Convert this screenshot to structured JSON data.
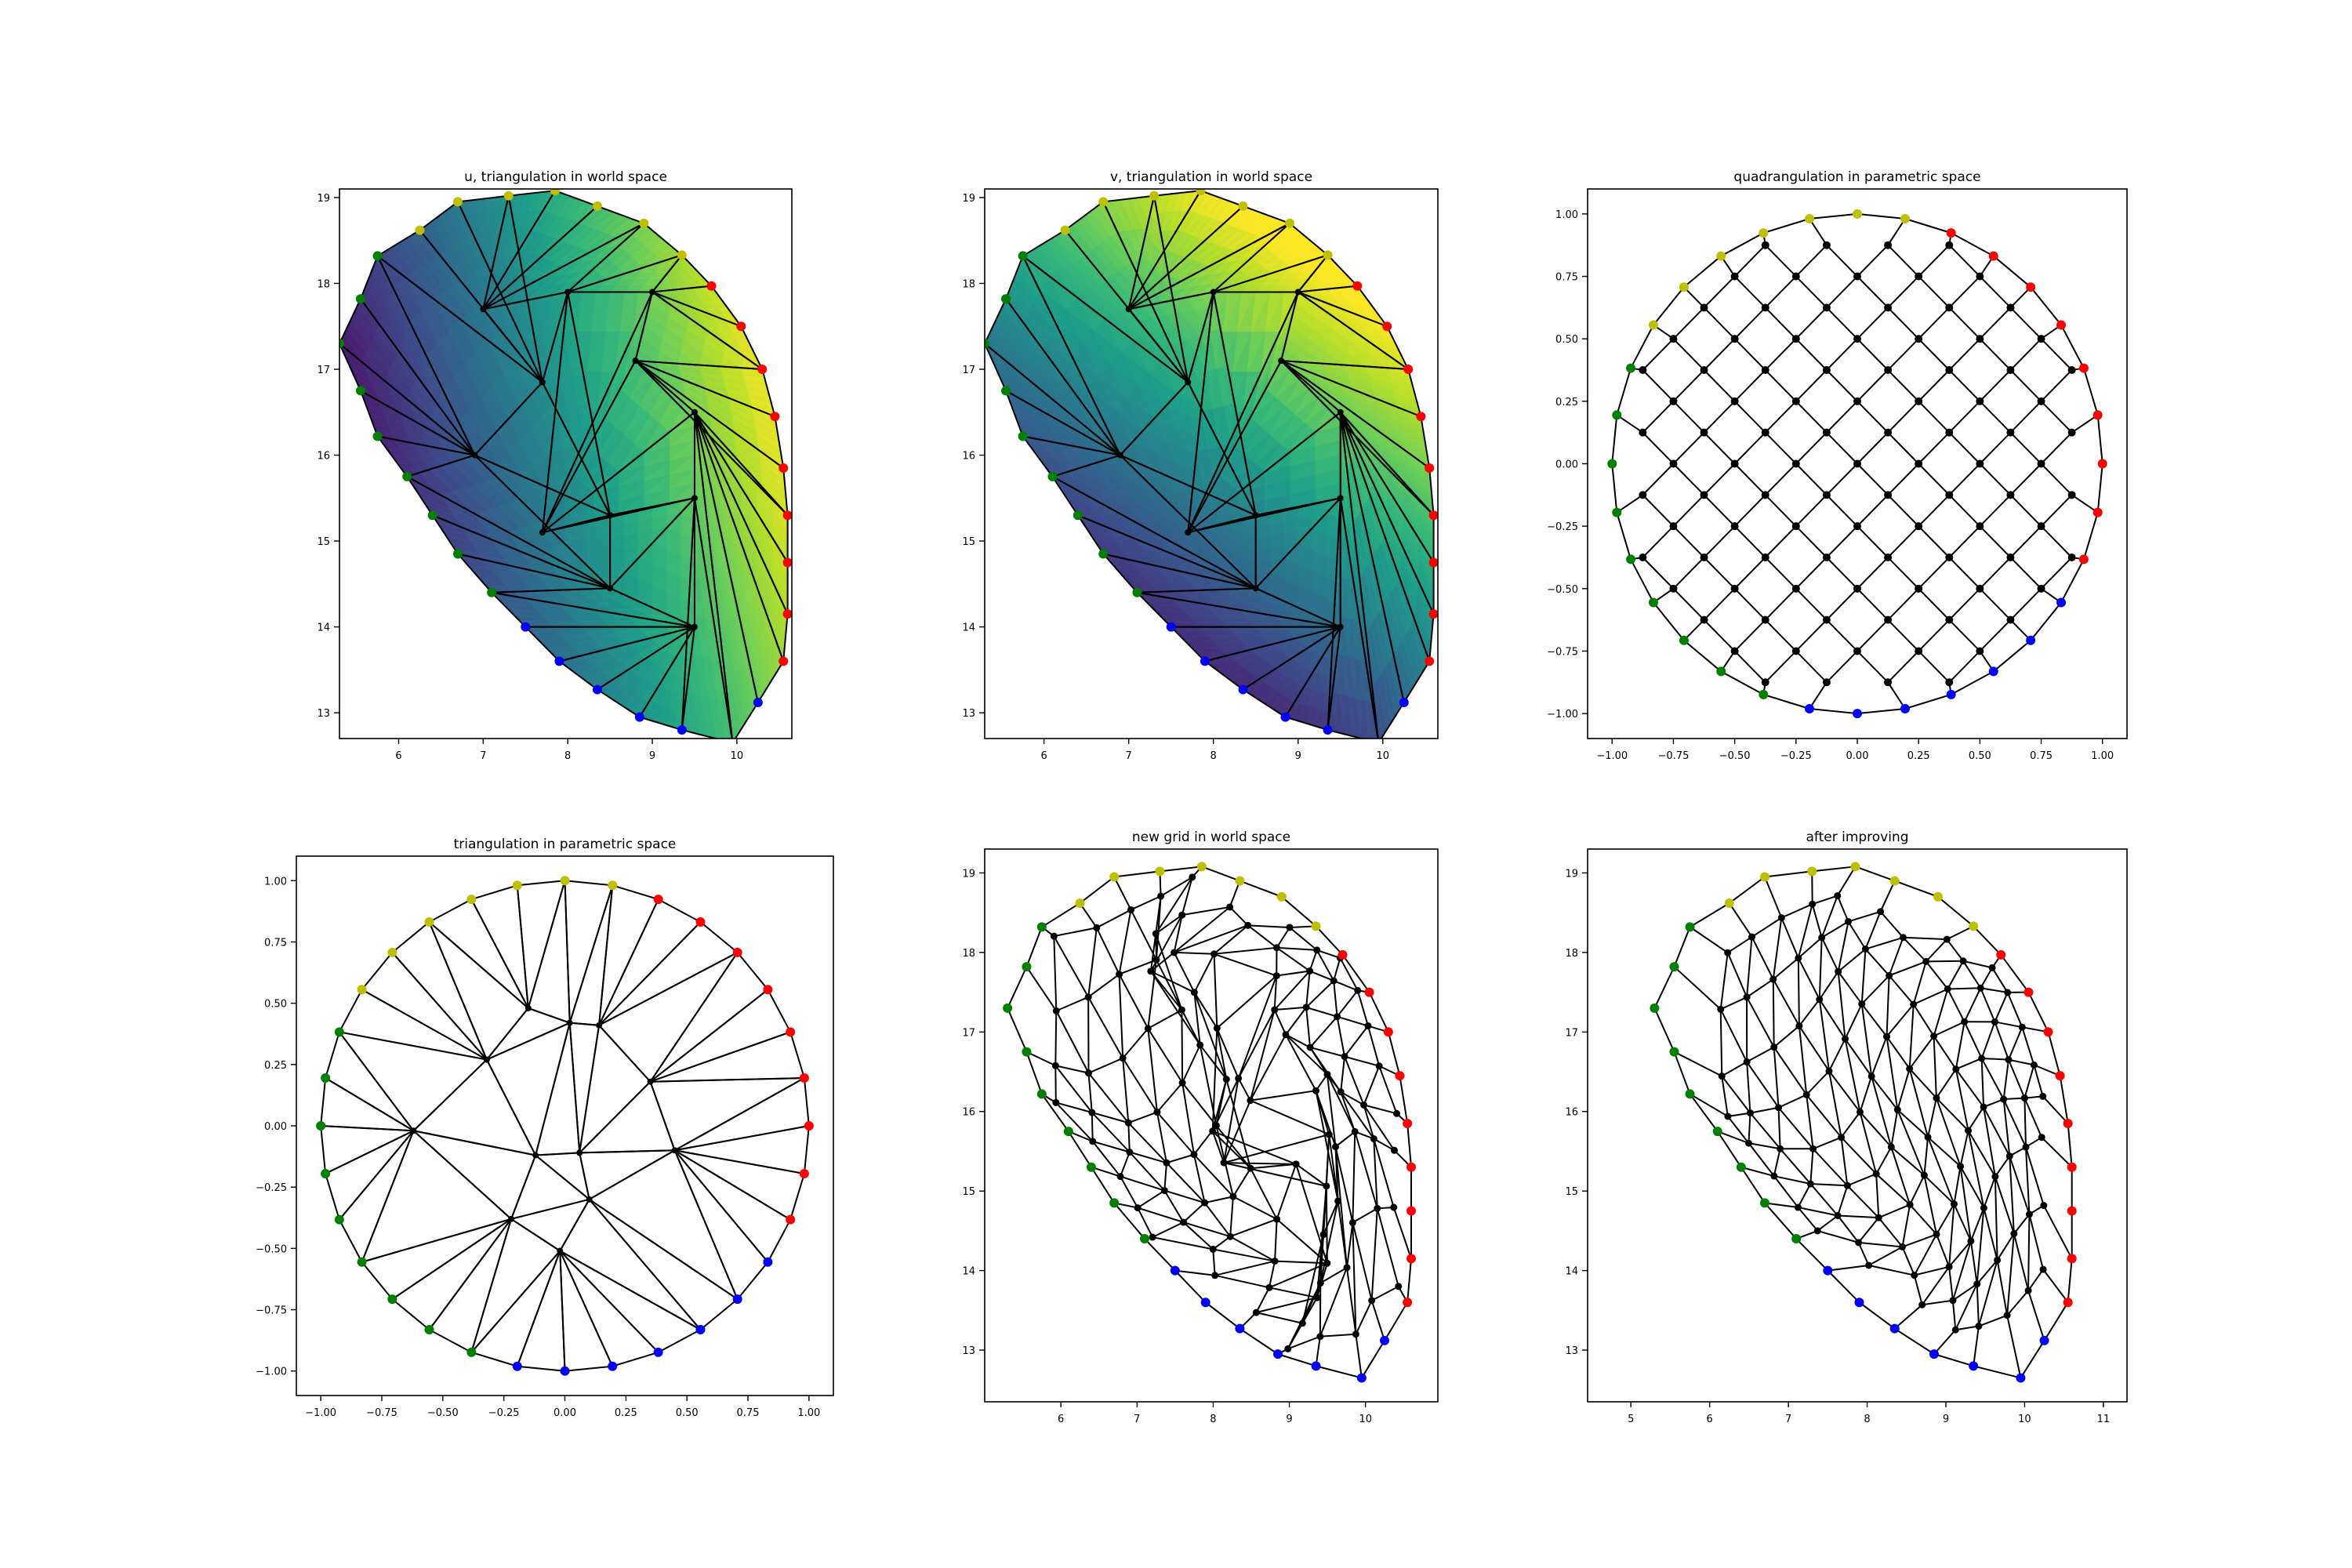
{
  "chart_data": [
    {
      "id": "p1",
      "type": "mesh",
      "title": "u, triangulation in world space",
      "fill": "viridis-u",
      "xlim": [
        5.3,
        10.65
      ],
      "ylim": [
        12.7,
        19.1
      ],
      "xticks": [
        6,
        7,
        8,
        9,
        10
      ],
      "yticks": [
        13,
        14,
        15,
        16,
        17,
        18,
        19
      ],
      "xtick_labels": [
        "6",
        "7",
        "8",
        "9",
        "10"
      ],
      "ytick_labels": [
        "13",
        "14",
        "15",
        "16",
        "17",
        "18",
        "19"
      ],
      "mesh": "world_tri"
    },
    {
      "id": "p2",
      "type": "mesh",
      "title": "v, triangulation in world space",
      "fill": "viridis-v",
      "xlim": [
        5.3,
        10.65
      ],
      "ylim": [
        12.7,
        19.1
      ],
      "xticks": [
        6,
        7,
        8,
        9,
        10
      ],
      "yticks": [
        13,
        14,
        15,
        16,
        17,
        18,
        19
      ],
      "xtick_labels": [
        "6",
        "7",
        "8",
        "9",
        "10"
      ],
      "ytick_labels": [
        "13",
        "14",
        "15",
        "16",
        "17",
        "18",
        "19"
      ],
      "mesh": "world_tri"
    },
    {
      "id": "p3",
      "type": "mesh",
      "title": "quadrangulation in parametric space",
      "xlim": [
        -1.1,
        1.1
      ],
      "ylim": [
        -1.1,
        1.1
      ],
      "xticks": [
        -1.0,
        -0.75,
        -0.5,
        -0.25,
        0.0,
        0.25,
        0.5,
        0.75,
        1.0
      ],
      "yticks": [
        -1.0,
        -0.75,
        -0.5,
        -0.25,
        0.0,
        0.25,
        0.5,
        0.75,
        1.0
      ],
      "xtick_labels": [
        "−1.00",
        "−0.75",
        "−0.50",
        "−0.25",
        "0.00",
        "0.25",
        "0.50",
        "0.75",
        "1.00"
      ],
      "ytick_labels": [
        "−1.00",
        "−0.75",
        "−0.50",
        "−0.25",
        "0.00",
        "0.25",
        "0.50",
        "0.75",
        "1.00"
      ],
      "mesh": "param_quad"
    },
    {
      "id": "p4",
      "type": "mesh",
      "title": "triangulation in parametric space",
      "xlim": [
        -1.1,
        1.1
      ],
      "ylim": [
        -1.1,
        1.1
      ],
      "xticks": [
        -1.0,
        -0.75,
        -0.5,
        -0.25,
        0.0,
        0.25,
        0.5,
        0.75,
        1.0
      ],
      "yticks": [
        -1.0,
        -0.75,
        -0.5,
        -0.25,
        0.0,
        0.25,
        0.5,
        0.75,
        1.0
      ],
      "xtick_labels": [
        "−1.00",
        "−0.75",
        "−0.50",
        "−0.25",
        "0.00",
        "0.25",
        "0.50",
        "0.75",
        "1.00"
      ],
      "ytick_labels": [
        "−1.00",
        "−0.75",
        "−0.50",
        "−0.25",
        "0.00",
        "0.25",
        "0.50",
        "0.75",
        "1.00"
      ],
      "mesh": "param_tri"
    },
    {
      "id": "p5",
      "type": "mesh",
      "title": "new grid in world space",
      "xlim": [
        5.0,
        10.95
      ],
      "ylim": [
        12.35,
        19.3
      ],
      "xticks": [
        6,
        7,
        8,
        9,
        10
      ],
      "yticks": [
        13,
        14,
        15,
        16,
        17,
        18,
        19
      ],
      "xtick_labels": [
        "6",
        "7",
        "8",
        "9",
        "10"
      ],
      "ytick_labels": [
        "13",
        "14",
        "15",
        "16",
        "17",
        "18",
        "19"
      ],
      "mesh": "new_grid"
    },
    {
      "id": "p6",
      "type": "mesh",
      "title": "after improving",
      "xlim": [
        4.45,
        11.3
      ],
      "ylim": [
        12.35,
        19.3
      ],
      "xticks": [
        5,
        6,
        7,
        8,
        9,
        10,
        11
      ],
      "yticks": [
        13,
        14,
        15,
        16,
        17,
        18,
        19
      ],
      "xtick_labels": [
        "5",
        "6",
        "7",
        "8",
        "9",
        "10",
        "11"
      ],
      "ytick_labels": [
        "13",
        "14",
        "15",
        "16",
        "17",
        "18",
        "19"
      ],
      "mesh": "new_grid_improved"
    }
  ],
  "boundary_world": [
    [
      10.6,
      14.75
    ],
    [
      10.6,
      15.3
    ],
    [
      10.55,
      15.85
    ],
    [
      10.45,
      16.45
    ],
    [
      10.3,
      17.0
    ],
    [
      10.05,
      17.5
    ],
    [
      9.7,
      17.97
    ],
    [
      9.35,
      18.33
    ],
    [
      8.9,
      18.7
    ],
    [
      8.35,
      18.9
    ],
    [
      7.85,
      19.08
    ],
    [
      7.3,
      19.02
    ],
    [
      6.7,
      18.95
    ],
    [
      6.25,
      18.62
    ],
    [
      5.75,
      18.32
    ],
    [
      5.55,
      17.82
    ],
    [
      5.3,
      17.3
    ],
    [
      5.55,
      16.75
    ],
    [
      5.75,
      16.22
    ],
    [
      6.1,
      15.75
    ],
    [
      6.4,
      15.3
    ],
    [
      6.7,
      14.85
    ],
    [
      7.1,
      14.4
    ],
    [
      7.5,
      14.0
    ],
    [
      7.9,
      13.6
    ],
    [
      8.35,
      13.27
    ],
    [
      8.85,
      12.95
    ],
    [
      9.35,
      12.8
    ],
    [
      9.95,
      12.65
    ],
    [
      10.25,
      13.12
    ],
    [
      10.55,
      13.6
    ],
    [
      10.6,
      14.15
    ]
  ],
  "boundary_colors": [
    "#ff0000",
    "#ff0000",
    "#ff0000",
    "#ff0000",
    "#ff0000",
    "#ff0000",
    "#ff0000",
    "#bfbf00",
    "#bfbf00",
    "#bfbf00",
    "#bfbf00",
    "#bfbf00",
    "#bfbf00",
    "#bfbf00",
    "#008000",
    "#008000",
    "#008000",
    "#008000",
    "#008000",
    "#008000",
    "#008000",
    "#008000",
    "#008000",
    "#0000ff",
    "#0000ff",
    "#0000ff",
    "#0000ff",
    "#0000ff",
    "#0000ff",
    "#0000ff",
    "#ff0000",
    "#ff0000"
  ],
  "interior_world": [
    [
      7.0,
      17.7
    ],
    [
      8.0,
      17.9
    ],
    [
      9.0,
      17.9
    ],
    [
      7.7,
      16.85
    ],
    [
      8.8,
      17.1
    ],
    [
      6.9,
      16.0
    ],
    [
      9.5,
      16.5
    ],
    [
      8.5,
      15.3
    ],
    [
      7.7,
      15.1
    ],
    [
      9.5,
      15.5
    ],
    [
      8.5,
      14.45
    ],
    [
      9.5,
      14.0
    ]
  ],
  "interior_param": [
    [
      -0.15,
      0.48
    ],
    [
      0.02,
      0.42
    ],
    [
      0.14,
      0.41
    ],
    [
      -0.32,
      0.27
    ],
    [
      0.35,
      0.18
    ],
    [
      -0.62,
      -0.02
    ],
    [
      0.45,
      -0.1
    ],
    [
      -0.12,
      -0.12
    ],
    [
      0.06,
      -0.11
    ],
    [
      0.1,
      -0.3
    ],
    [
      -0.22,
      -0.38
    ],
    [
      -0.02,
      -0.51
    ]
  ],
  "colors": {
    "line": "#000000",
    "interior_node": "#000000"
  }
}
